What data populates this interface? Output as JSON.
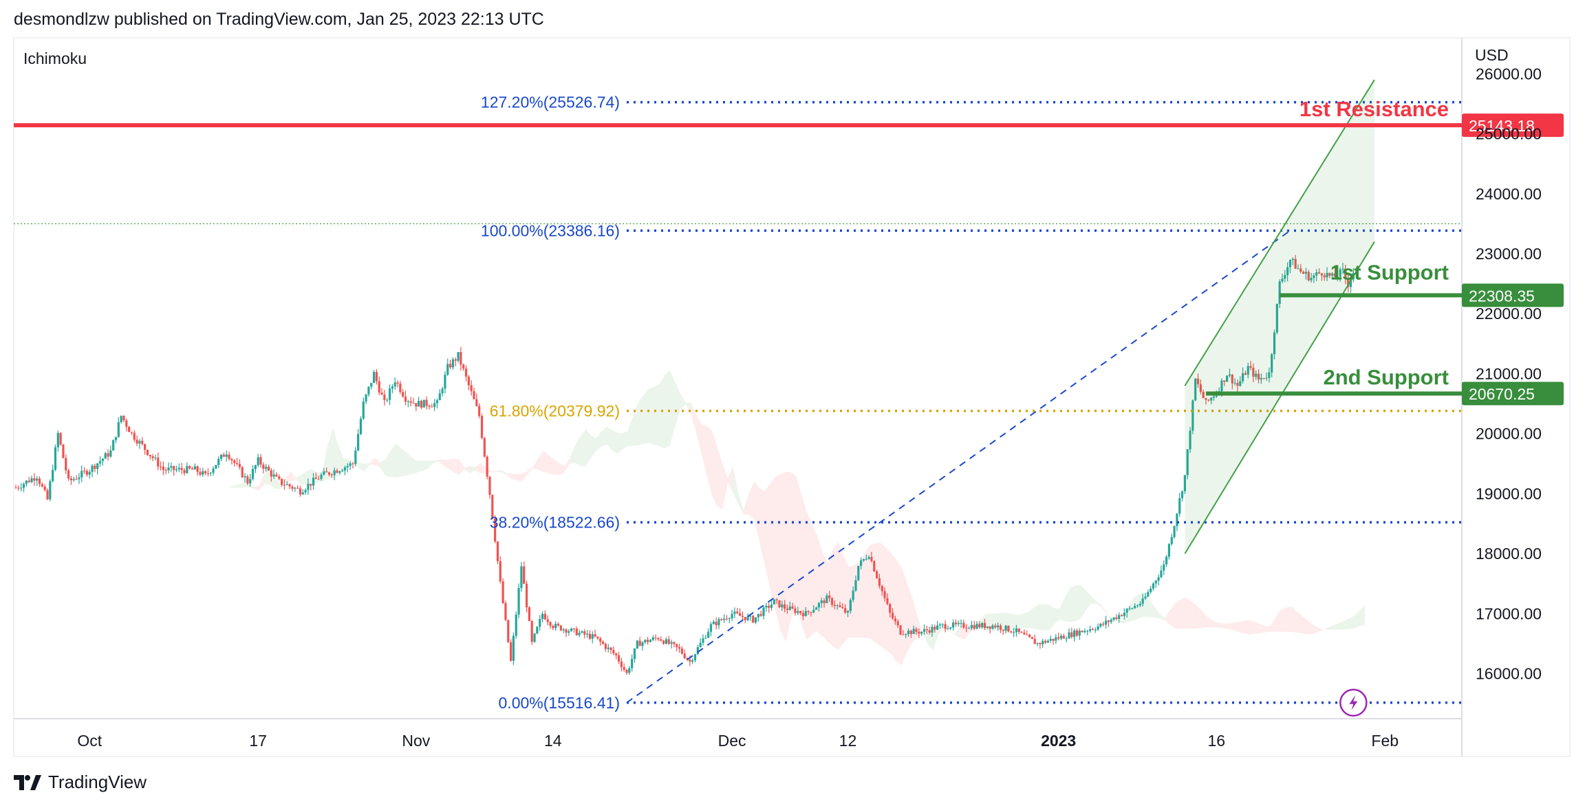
{
  "header": {
    "text": "desmondlzw published on TradingView.com, Jan 25, 2023 22:13 UTC"
  },
  "footer": {
    "brand": "TradingView"
  },
  "chart_data": {
    "type": "candlestick",
    "indicator": "Ichimoku",
    "currency": "USD",
    "ylim": [
      15250,
      26600
    ],
    "y_ticks": [
      16000,
      17000,
      18000,
      19000,
      20000,
      21000,
      22000,
      23000,
      24000,
      25000,
      26000
    ],
    "y_tick_labels": [
      "16000.00",
      "17000.00",
      "18000.00",
      "19000.00",
      "20000.00",
      "21000.00",
      "22000.00",
      "23000.00",
      "24000.00",
      "25000.00",
      "26000.00"
    ],
    "x_ticks": [
      {
        "label": "Oct",
        "day": 0,
        "bold": false
      },
      {
        "label": "17",
        "day": 16,
        "bold": false
      },
      {
        "label": "Nov",
        "day": 31,
        "bold": false
      },
      {
        "label": "14",
        "day": 44,
        "bold": false
      },
      {
        "label": "Dec",
        "day": 61,
        "bold": false
      },
      {
        "label": "12",
        "day": 72,
        "bold": false
      },
      {
        "label": "2023",
        "day": 92,
        "bold": true
      },
      {
        "label": "16",
        "day": 107,
        "bold": false
      },
      {
        "label": "Feb",
        "day": 123,
        "bold": false
      }
    ],
    "x_range_days": [
      -7.2,
      130.3
    ],
    "price_path": [
      [
        -7,
        19100
      ],
      [
        -5,
        19300
      ],
      [
        -4,
        18900
      ],
      [
        -3,
        20000
      ],
      [
        -2,
        19200
      ],
      [
        0,
        19400
      ],
      [
        2,
        19700
      ],
      [
        3,
        20300
      ],
      [
        4,
        20000
      ],
      [
        6,
        19600
      ],
      [
        7,
        19400
      ],
      [
        8,
        19400
      ],
      [
        10,
        19400
      ],
      [
        11,
        19300
      ],
      [
        13,
        19700
      ],
      [
        15,
        19200
      ],
      [
        16,
        19550
      ],
      [
        18,
        19200
      ],
      [
        20,
        19050
      ],
      [
        22,
        19300
      ],
      [
        25,
        19500
      ],
      [
        26,
        20500
      ],
      [
        27,
        21000
      ],
      [
        28,
        20500
      ],
      [
        29,
        20900
      ],
      [
        30,
        20600
      ],
      [
        31,
        20500
      ],
      [
        33,
        20500
      ],
      [
        34,
        21100
      ],
      [
        35,
        21300
      ],
      [
        36,
        20800
      ],
      [
        37,
        20300
      ],
      [
        38,
        19000
      ],
      [
        39,
        17500
      ],
      [
        40,
        16200
      ],
      [
        41,
        17800
      ],
      [
        42,
        16500
      ],
      [
        43,
        17000
      ],
      [
        44,
        16800
      ],
      [
        46,
        16700
      ],
      [
        48,
        16600
      ],
      [
        50,
        16300
      ],
      [
        51,
        16000
      ],
      [
        52,
        16500
      ],
      [
        54,
        16600
      ],
      [
        56,
        16400
      ],
      [
        57,
        16200
      ],
      [
        59,
        16800
      ],
      [
        61,
        17000
      ],
      [
        63,
        16900
      ],
      [
        65,
        17200
      ],
      [
        66,
        17100
      ],
      [
        68,
        17000
      ],
      [
        70,
        17250
      ],
      [
        72,
        17000
      ],
      [
        73,
        17800
      ],
      [
        74,
        18000
      ],
      [
        75,
        17500
      ],
      [
        76,
        17000
      ],
      [
        77,
        16700
      ],
      [
        79,
        16700
      ],
      [
        81,
        16800
      ],
      [
        83,
        16800
      ],
      [
        86,
        16800
      ],
      [
        88,
        16700
      ],
      [
        90,
        16500
      ],
      [
        92,
        16600
      ],
      [
        94,
        16700
      ],
      [
        96,
        16800
      ],
      [
        98,
        17000
      ],
      [
        100,
        17200
      ],
      [
        102,
        17800
      ],
      [
        103,
        18500
      ],
      [
        104,
        19300
      ],
      [
        105,
        20900
      ],
      [
        106,
        20500
      ],
      [
        107,
        20700
      ],
      [
        108,
        21000
      ],
      [
        109,
        20800
      ],
      [
        110,
        21100
      ],
      [
        111,
        20900
      ],
      [
        112,
        21000
      ],
      [
        113,
        22500
      ],
      [
        114,
        22900
      ],
      [
        115,
        22700
      ],
      [
        116,
        22600
      ],
      [
        117,
        22700
      ],
      [
        118,
        22600
      ],
      [
        119,
        22700
      ],
      [
        119.5,
        22500
      ],
      [
        120,
        22700
      ]
    ],
    "fib_levels": [
      {
        "label": "127.20%(25526.74)",
        "value": 25526.74,
        "color": "#1848cc"
      },
      {
        "label": "100.00%(23386.16)",
        "value": 23386.16,
        "color": "#1848cc"
      },
      {
        "label": "61.80%(20379.92)",
        "value": 20379.92,
        "color": "#d9a400"
      },
      {
        "label": "38.20%(18522.66)",
        "value": 18522.66,
        "color": "#1848cc"
      },
      {
        "label": "0.00%(15516.41)",
        "value": 15516.41,
        "color": "#1848cc"
      }
    ],
    "resistance": {
      "label": "1st Resistance",
      "value": 25143.18,
      "price_label": "25143.18",
      "color": "#f23645"
    },
    "supports": [
      {
        "label": "1st Support",
        "value": 22308.35,
        "price_label": "22308.35",
        "color": "#388e3c",
        "from_day": 113
      },
      {
        "label": "2nd Support",
        "value": 20670.25,
        "price_label": "20670.25",
        "color": "#388e3c",
        "from_day": 106
      }
    ],
    "reference_line": {
      "value": 23500
    },
    "trend_line": {
      "from": [
        51,
        15516.41
      ],
      "to": [
        114,
        23386.16
      ]
    },
    "channel": {
      "upper": [
        [
          104,
          20800
        ],
        [
          122,
          25900
        ]
      ],
      "lower": [
        [
          104,
          18000
        ],
        [
          122,
          23200
        ]
      ]
    },
    "annotations": [
      {
        "type": "lightning-icon",
        "day": 120
      }
    ]
  }
}
